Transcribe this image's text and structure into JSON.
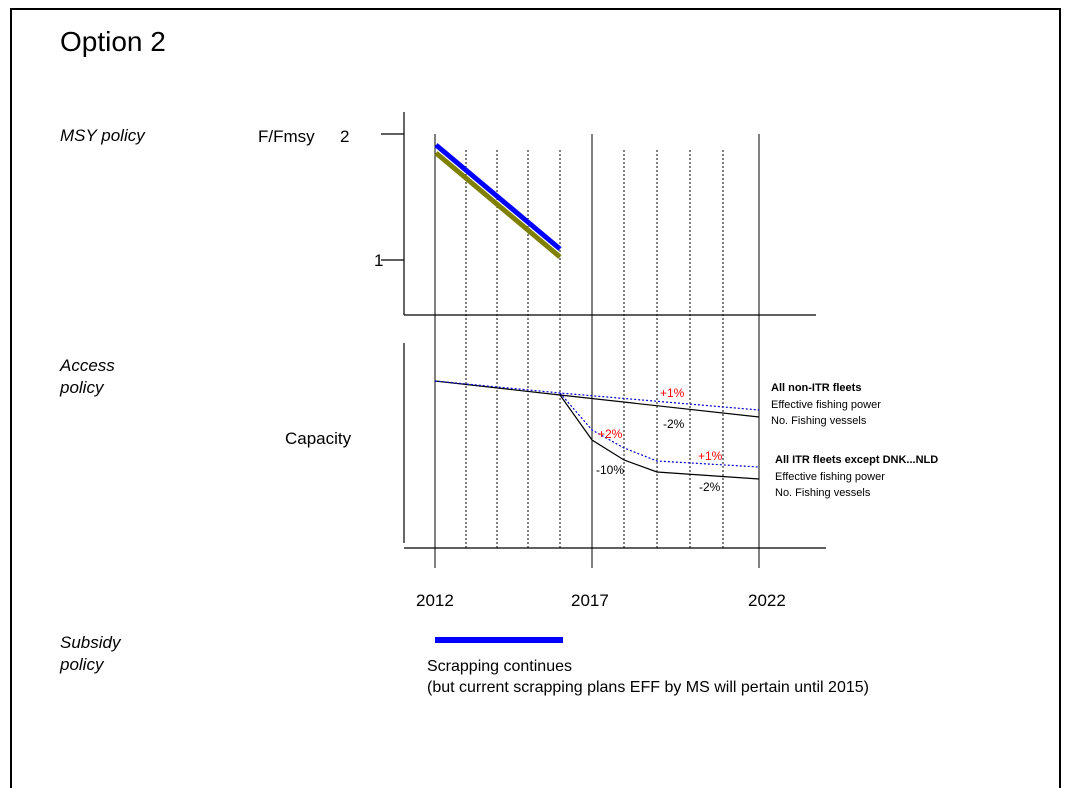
{
  "title": "Option 2",
  "sections": {
    "msy": "MSY policy",
    "access_line1": "Access",
    "access_line2": "policy",
    "subsidy_line1": "Subsidy",
    "subsidy_line2": "policy"
  },
  "top_panel": {
    "ylabel": "F/Fmsy",
    "tick_2": "2",
    "tick_1": "1",
    "colors": {
      "blue_line": "#0000ff",
      "olive_line": "#7f7f00"
    }
  },
  "bottom_panel": {
    "ylabel": "Capacity",
    "years": [
      "2012",
      "2017",
      "2022"
    ],
    "pct_labels": {
      "nonitr_power": "+1%",
      "nonitr_vessels": "-2%",
      "itr_drop_power": "+2%",
      "itr_drop_vessels": "-10%",
      "itr_power": "+1%",
      "itr_vessels": "-2%"
    },
    "legend_nonitr": {
      "heading": "All non-ITR fleets",
      "power": "Effective fishing power",
      "vessels": "No. Fishing vessels"
    },
    "legend_itr": {
      "heading": "All ITR fleets except DNK...NLD",
      "power": "Effective fishing power",
      "vessels": "No. Fishing vessels"
    },
    "colors": {
      "power_line": "#0000cc",
      "vessels_line": "#000000",
      "pct_red": "#ff0000"
    }
  },
  "subsidy": {
    "bar_color": "#0000ff",
    "note_line1": "Scrapping continues",
    "note_line2": "(but current scrapping plans EFF by MS will pertain until 2015)"
  }
}
